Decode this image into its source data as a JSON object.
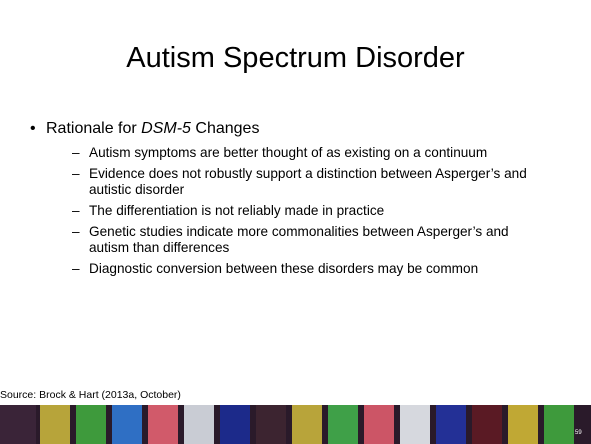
{
  "slide": {
    "title": "Autism Spectrum Disorder",
    "bullet": {
      "before": "Rationale for ",
      "italic": "DSM-5",
      "after": " Changes"
    },
    "sub_bullets": [
      "Autism symptoms are better thought of as existing on a continuum",
      "Evidence does not robustly support a distinction between Asperger’s and autistic disorder",
      "The differentiation is not reliably made in practice",
      "Genetic studies indicate more commonalities between Asperger’s and autism than differences",
      "Diagnostic conversion between these disorders may be common"
    ],
    "source": "Source: Brock & Hart (2013a, October)",
    "page_number": "59"
  }
}
